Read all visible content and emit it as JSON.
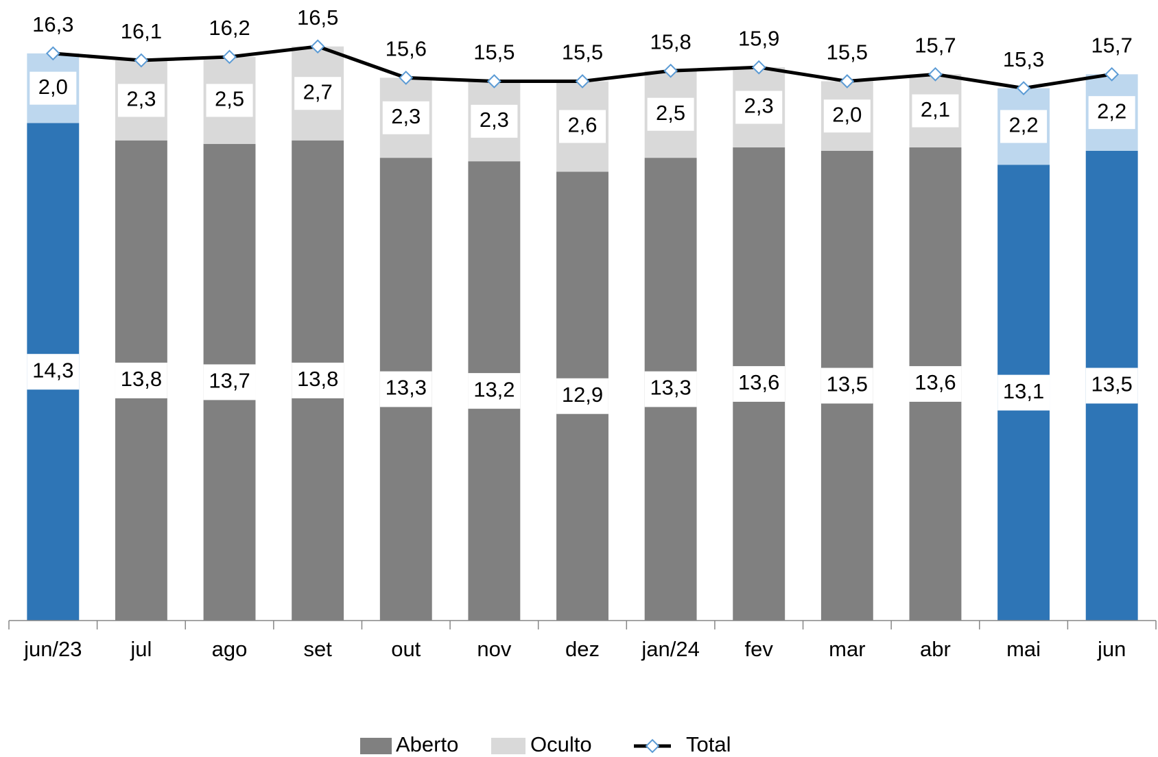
{
  "chart_data": {
    "type": "stacked-bar-line",
    "categories": [
      "jun/23",
      "jul",
      "ago",
      "set",
      "out",
      "nov",
      "dez",
      "jan/24",
      "fev",
      "mar",
      "abr",
      "mai",
      "jun"
    ],
    "series": [
      {
        "name": "Aberto",
        "color": "#808080",
        "colors": [
          "#2e75b6",
          "#808080",
          "#808080",
          "#808080",
          "#808080",
          "#808080",
          "#808080",
          "#808080",
          "#808080",
          "#808080",
          "#808080",
          "#2e75b6",
          "#2e75b6"
        ],
        "values": [
          14.3,
          13.8,
          13.7,
          13.8,
          13.3,
          13.2,
          12.9,
          13.3,
          13.6,
          13.5,
          13.6,
          13.1,
          13.5
        ],
        "value_labels": [
          "14,3",
          "13,8",
          "13,7",
          "13,8",
          "13,3",
          "13,2",
          "12,9",
          "13,3",
          "13,6",
          "13,5",
          "13,6",
          "13,1",
          "13,5"
        ]
      },
      {
        "name": "Oculto",
        "color": "#d9d9d9",
        "colors": [
          "#bdd7ee",
          "#d9d9d9",
          "#d9d9d9",
          "#d9d9d9",
          "#d9d9d9",
          "#d9d9d9",
          "#d9d9d9",
          "#d9d9d9",
          "#d9d9d9",
          "#d9d9d9",
          "#d9d9d9",
          "#bdd7ee",
          "#bdd7ee"
        ],
        "values": [
          2.0,
          2.3,
          2.5,
          2.7,
          2.3,
          2.3,
          2.6,
          2.5,
          2.3,
          2.0,
          2.1,
          2.2,
          2.2
        ],
        "value_labels": [
          "2,0",
          "2,3",
          "2,5",
          "2,7",
          "2,3",
          "2,3",
          "2,6",
          "2,5",
          "2,3",
          "2,0",
          "2,1",
          "2,2",
          "2,2"
        ]
      },
      {
        "name": "Total",
        "color": "#000000",
        "marker_color": "#5b9bd5",
        "values": [
          16.3,
          16.1,
          16.2,
          16.5,
          15.6,
          15.5,
          15.5,
          15.8,
          15.9,
          15.5,
          15.7,
          15.3,
          15.7
        ],
        "value_labels": [
          "16,3",
          "16,1",
          "16,2",
          "16,5",
          "15,6",
          "15,5",
          "15,5",
          "15,8",
          "15,9",
          "15,5",
          "15,7",
          "15,3",
          "15,7"
        ]
      }
    ],
    "ylim": [
      0,
      17.5
    ]
  }
}
